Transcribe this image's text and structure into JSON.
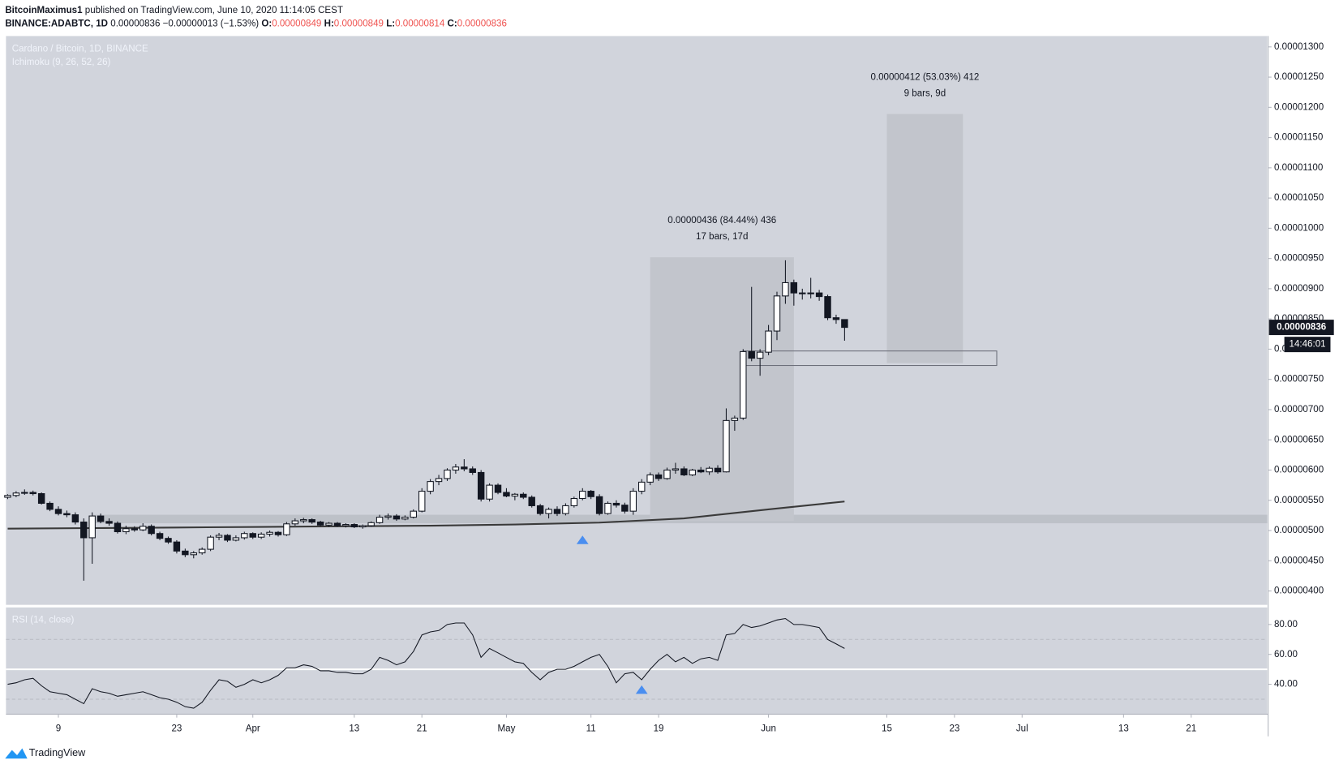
{
  "header": {
    "author": "BitcoinMaximus1",
    "published": "published on TradingView.com, June 10, 2020 11:14:05 CEST",
    "symbol": "BINANCE:ADABTC, 1D",
    "last": "0.00000836",
    "change": "−0.00000013 (−1.53%)",
    "o_label": "O:",
    "o": "0.00000849",
    "h_label": "H:",
    "h": "0.00000849",
    "l_label": "L:",
    "l": "0.00000814",
    "c_label": "C:",
    "c": "0.00000836",
    "brand": "TradingView"
  },
  "chart_data": {
    "type": "candlestick",
    "title": "Cardano / Bitcoin, 1D, BINANCE",
    "indicator": "Ichimoku (9, 26, 52, 26)",
    "series": {
      "open": [
        5.55e-06,
        5.58e-06,
        5.62e-06,
        5.63e-06,
        5.61e-06,
        5.45e-06,
        5.35e-06,
        5.28e-06,
        5.26e-06,
        5.14e-06,
        4.88e-06,
        5.24e-06,
        5.15e-06,
        5.12e-06,
        4.98e-06,
        5.03e-06,
        5.01e-06,
        5.07e-06,
        4.95e-06,
        4.87e-06,
        4.81e-06,
        4.66e-06,
        4.6e-06,
        4.63e-06,
        4.69e-06,
        4.89e-06,
        4.92e-06,
        4.84e-06,
        4.88e-06,
        4.95e-06,
        4.89e-06,
        4.94e-06,
        4.97e-06,
        4.93e-06,
        5.11e-06,
        5.16e-06,
        5.18e-06,
        5.14e-06,
        5.09e-06,
        5.12e-06,
        5.08e-06,
        5.1e-06,
        5.06e-06,
        5.08e-06,
        5.13e-06,
        5.22e-06,
        5.24e-06,
        5.19e-06,
        5.22e-06,
        5.32e-06,
        5.65e-06,
        5.81e-06,
        5.86e-06,
        6e-06,
        6.05e-06,
        6.02e-06,
        5.96e-06,
        5.52e-06,
        5.75e-06,
        5.63e-06,
        5.57e-06,
        5.6e-06,
        5.55e-06,
        5.41e-06,
        5.28e-06,
        5.35e-06,
        5.28e-06,
        5.41e-06,
        5.53e-06,
        5.65e-06,
        5.56e-06,
        5.28e-06,
        5.45e-06,
        5.42e-06,
        5.32e-06,
        5.65e-06,
        5.8e-06,
        5.92e-06,
        5.86e-06,
        6e-06,
        6.02e-06,
        5.92e-06,
        6e-06,
        5.97e-06,
        6.03e-06,
        5.97e-06,
        6.82e-06,
        6.86e-06,
        7.96e-06,
        7.85e-06,
        7.95e-06,
        8.3e-06,
        8.88e-06,
        9.1e-06,
        8.93e-06,
        8.92e-06,
        8.93e-06,
        8.87e-06,
        8.52e-06,
        8.49e-06
      ],
      "high": [
        5.6e-06,
        5.65e-06,
        5.68e-06,
        5.66e-06,
        5.63e-06,
        5.48e-06,
        5.4e-06,
        5.33e-06,
        5.3e-06,
        5.2e-06,
        5.3e-06,
        5.28e-06,
        5.2e-06,
        5.15e-06,
        5.08e-06,
        5.07e-06,
        5.12e-06,
        5.1e-06,
        4.98e-06,
        4.9e-06,
        4.84e-06,
        4.7e-06,
        4.66e-06,
        4.72e-06,
        4.92e-06,
        4.96e-06,
        4.94e-06,
        4.92e-06,
        4.98e-06,
        4.97e-06,
        4.97e-06,
        5e-06,
        4.99e-06,
        5.14e-06,
        5.2e-06,
        5.21e-06,
        5.2e-06,
        5.16e-06,
        5.14e-06,
        5.14e-06,
        5.12e-06,
        5.12e-06,
        5.1e-06,
        5.15e-06,
        5.26e-06,
        5.28e-06,
        5.27e-06,
        5.25e-06,
        5.35e-06,
        5.7e-06,
        5.85e-06,
        5.92e-06,
        6.03e-06,
        6.1e-06,
        6.18e-06,
        6.06e-06,
        6e-06,
        5.78e-06,
        5.78e-06,
        5.7e-06,
        5.62e-06,
        5.63e-06,
        5.58e-06,
        5.44e-06,
        5.38e-06,
        5.4e-06,
        5.45e-06,
        5.56e-06,
        5.7e-06,
        5.67e-06,
        5.6e-06,
        5.48e-06,
        5.5e-06,
        5.46e-06,
        5.7e-06,
        5.85e-06,
        5.96e-06,
        5.96e-06,
        6.04e-06,
        6.12e-06,
        6.06e-06,
        6.02e-06,
        6.05e-06,
        6.06e-06,
        6.08e-06,
        7.02e-06,
        6.9e-06,
        8e-06,
        9.03e-06,
        8e-06,
        8.4e-06,
        8.95e-06,
        9.47e-06,
        9.15e-06,
        9e-06,
        9.18e-06,
        8.98e-06,
        8.9e-06,
        8.57e-06,
        8.49e-06
      ],
      "low": [
        5.52e-06,
        5.55e-06,
        5.59e-06,
        5.58e-06,
        5.43e-06,
        5.32e-06,
        5.25e-06,
        5.22e-06,
        5.1e-06,
        4.17e-06,
        4.45e-06,
        5.12e-06,
        5.08e-06,
        4.95e-06,
        4.94e-06,
        4.98e-06,
        4.99e-06,
        4.92e-06,
        4.84e-06,
        4.78e-06,
        4.62e-06,
        4.56e-06,
        4.54e-06,
        4.6e-06,
        4.66e-06,
        4.84e-06,
        4.81e-06,
        4.82e-06,
        4.85e-06,
        4.86e-06,
        4.86e-06,
        4.9e-06,
        4.9e-06,
        4.91e-06,
        5.08e-06,
        5.12e-06,
        5.11e-06,
        5.07e-06,
        5.06e-06,
        5.06e-06,
        5.05e-06,
        5.04e-06,
        5.03e-06,
        5.06e-06,
        5.11e-06,
        5.18e-06,
        5.16e-06,
        5.17e-06,
        5.2e-06,
        5.3e-06,
        5.6e-06,
        5.75e-06,
        5.82e-06,
        5.94e-06,
        5.98e-06,
        5.92e-06,
        5.48e-06,
        5.48e-06,
        5.6e-06,
        5.55e-06,
        5.5e-06,
        5.52e-06,
        5.38e-06,
        5.25e-06,
        5.2e-06,
        5.24e-06,
        5.25e-06,
        5.38e-06,
        5.5e-06,
        5.52e-06,
        5.25e-06,
        5.26e-06,
        5.38e-06,
        5.28e-06,
        5.26e-06,
        5.6e-06,
        5.75e-06,
        5.82e-06,
        5.84e-06,
        5.94e-06,
        5.9e-06,
        5.9e-06,
        5.95e-06,
        5.92e-06,
        5.94e-06,
        5.96e-06,
        6.65e-06,
        6.83e-06,
        7.8e-06,
        7.56e-06,
        7.9e-06,
        8.15e-06,
        8.75e-06,
        8.72e-06,
        8.82e-06,
        8.84e-06,
        8.8e-06,
        8.48e-06,
        8.42e-06,
        8.14e-06
      ],
      "close": [
        5.58e-06,
        5.62e-06,
        5.63e-06,
        5.61e-06,
        5.45e-06,
        5.35e-06,
        5.28e-06,
        5.26e-06,
        5.14e-06,
        4.88e-06,
        5.24e-06,
        5.15e-06,
        5.12e-06,
        4.98e-06,
        5.03e-06,
        5.01e-06,
        5.07e-06,
        4.95e-06,
        4.87e-06,
        4.81e-06,
        4.66e-06,
        4.6e-06,
        4.63e-06,
        4.69e-06,
        4.89e-06,
        4.92e-06,
        4.84e-06,
        4.88e-06,
        4.95e-06,
        4.89e-06,
        4.94e-06,
        4.97e-06,
        4.93e-06,
        5.11e-06,
        5.16e-06,
        5.18e-06,
        5.14e-06,
        5.09e-06,
        5.12e-06,
        5.08e-06,
        5.1e-06,
        5.06e-06,
        5.08e-06,
        5.13e-06,
        5.22e-06,
        5.24e-06,
        5.19e-06,
        5.22e-06,
        5.32e-06,
        5.65e-06,
        5.81e-06,
        5.86e-06,
        6e-06,
        6.05e-06,
        6.02e-06,
        5.96e-06,
        5.52e-06,
        5.75e-06,
        5.63e-06,
        5.57e-06,
        5.6e-06,
        5.55e-06,
        5.41e-06,
        5.28e-06,
        5.35e-06,
        5.28e-06,
        5.41e-06,
        5.53e-06,
        5.65e-06,
        5.56e-06,
        5.28e-06,
        5.45e-06,
        5.42e-06,
        5.32e-06,
        5.65e-06,
        5.8e-06,
        5.92e-06,
        5.86e-06,
        6e-06,
        6.02e-06,
        5.92e-06,
        6e-06,
        5.97e-06,
        6.03e-06,
        5.97e-06,
        6.82e-06,
        6.86e-06,
        7.96e-06,
        7.85e-06,
        7.95e-06,
        8.3e-06,
        8.88e-06,
        9.1e-06,
        8.93e-06,
        8.92e-06,
        8.93e-06,
        8.87e-06,
        8.52e-06,
        8.49e-06,
        8.36e-06
      ]
    },
    "up_color": "#ffffff",
    "down_color": "#131722",
    "xlim": [
      -0.2,
      149
    ],
    "xticks": [
      {
        "value": 6,
        "label": "9"
      },
      {
        "value": 20,
        "label": "23"
      },
      {
        "value": 29,
        "label": "Apr"
      },
      {
        "value": 41,
        "label": "13"
      },
      {
        "value": 49,
        "label": "21"
      },
      {
        "value": 59,
        "label": "May"
      },
      {
        "value": 69,
        "label": "11"
      },
      {
        "value": 77,
        "label": "19"
      },
      {
        "value": 90,
        "label": "Jun"
      },
      {
        "value": 104,
        "label": "15"
      },
      {
        "value": 112,
        "label": "23"
      },
      {
        "value": 120,
        "label": "Jul"
      },
      {
        "value": 132,
        "label": "13"
      },
      {
        "value": 140,
        "label": "21"
      }
    ],
    "ylim": [
      3.77e-06,
      1.318e-05
    ],
    "yticks": [
      {
        "value": 4e-06,
        "label": "0.00000400"
      },
      {
        "value": 4.5e-06,
        "label": "0.00000450"
      },
      {
        "value": 5e-06,
        "label": "0.00000500"
      },
      {
        "value": 5.5e-06,
        "label": "0.00000550"
      },
      {
        "value": 6e-06,
        "label": "0.00000600"
      },
      {
        "value": 6.5e-06,
        "label": "0.00000650"
      },
      {
        "value": 7e-06,
        "label": "0.00000700"
      },
      {
        "value": 7.5e-06,
        "label": "0.00000750"
      },
      {
        "value": 8e-06,
        "label": "0.00000800"
      },
      {
        "value": 8.5e-06,
        "label": "0.00000850"
      },
      {
        "value": 9e-06,
        "label": "0.00000900"
      },
      {
        "value": 9.5e-06,
        "label": "0.00000950"
      },
      {
        "value": 1e-05,
        "label": "0.00001000"
      },
      {
        "value": 1.05e-05,
        "label": "0.00001050"
      },
      {
        "value": 1.1e-05,
        "label": "0.00001100"
      },
      {
        "value": 1.15e-05,
        "label": "0.00001150"
      },
      {
        "value": 1.2e-05,
        "label": "0.00001200"
      },
      {
        "value": 1.25e-05,
        "label": "0.00001250"
      },
      {
        "value": 1.3e-05,
        "label": "0.00001300"
      }
    ],
    "ma": {
      "color": "#3a3a3a",
      "x": [
        0,
        10,
        20,
        30,
        40,
        50,
        60,
        70,
        80,
        90,
        99
      ],
      "values": [
        5.03e-06,
        5.04e-06,
        5.05e-06,
        5.06e-06,
        5.07e-06,
        5.08e-06,
        5.1e-06,
        5.13e-06,
        5.2e-06,
        5.35e-06,
        5.48e-06
      ]
    },
    "zone": {
      "x": [
        10,
        149
      ],
      "y": [
        5.12e-06,
        5.26e-06
      ]
    },
    "box": {
      "x": [
        87,
        117
      ],
      "y": [
        7.73e-06,
        7.97e-06
      ]
    },
    "measures": [
      {
        "x": [
          76,
          93
        ],
        "y": [
          5.16e-06,
          9.52e-06
        ],
        "label": "0.00000436 (84.44%) 436",
        "bars": "17 bars, 17d"
      },
      {
        "x": [
          104,
          113
        ],
        "y": [
          7.77e-06,
          1.189e-05
        ],
        "label": "0.00000412 (53.03%) 412",
        "bars": "9 bars, 9d"
      }
    ],
    "last_price": {
      "value": 8.36e-06,
      "label": "0.00000836"
    },
    "countdown": "14:46:01",
    "price_signal": {
      "x": 68,
      "y": 4.86e-06
    },
    "rsi": {
      "title": "RSI (14, close)",
      "color": "#131722",
      "ylim": [
        20,
        91.4
      ],
      "yticks": [
        {
          "value": 80,
          "label": "80.00"
        },
        {
          "value": 60,
          "label": "60.00"
        },
        {
          "value": 40,
          "label": "40.00"
        }
      ],
      "levels": [
        70,
        50,
        30
      ],
      "signal": {
        "x": 75,
        "y": 37
      },
      "values": [
        40,
        41,
        43,
        44,
        39,
        35,
        34,
        33,
        30,
        27,
        37,
        35,
        34,
        32,
        33,
        34,
        35,
        33,
        31,
        30,
        28,
        25,
        24,
        28,
        36,
        43,
        42,
        38,
        40,
        43,
        41,
        43,
        46,
        51,
        51,
        53,
        52,
        49,
        49,
        48,
        48,
        47,
        47,
        50,
        58,
        56,
        53,
        55,
        62,
        73,
        75,
        76,
        80,
        81,
        81,
        73,
        58,
        64,
        61,
        58,
        55,
        54,
        48,
        43,
        48,
        50,
        50,
        52,
        55,
        58,
        60,
        52,
        41,
        47,
        48,
        43,
        50,
        56,
        60,
        55,
        58,
        54,
        57,
        58,
        56,
        73,
        74,
        80,
        78,
        79,
        81,
        83,
        84,
        80,
        80,
        79,
        78,
        70,
        67,
        64
      ]
    }
  }
}
